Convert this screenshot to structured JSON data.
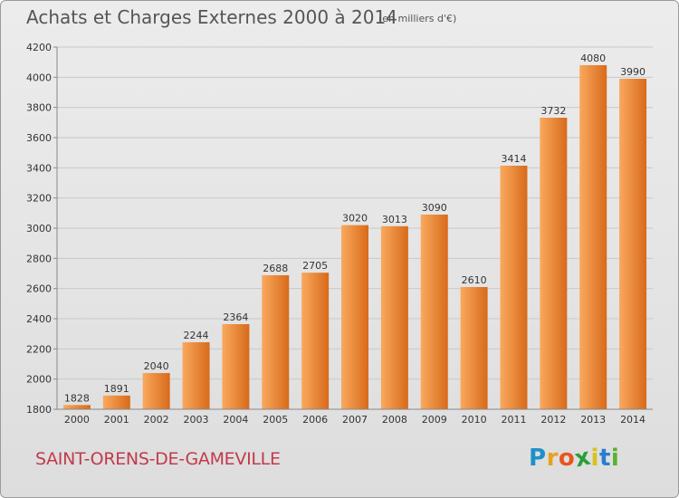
{
  "header": {
    "title": "Achats et Charges Externes 2000 à 2014",
    "subtitle": "(en milliers d'€)"
  },
  "footer": {
    "commune": "SAINT-ORENS-DE-GAMEVILLE",
    "logo": {
      "letters": [
        "P",
        "r",
        "o",
        "x",
        "i",
        "t",
        "i"
      ],
      "colors": [
        "#1e90c8",
        "#e8a21c",
        "#e8561c",
        "#2a9e3a",
        "#d8c21c",
        "#2a7ed0",
        "#58b230"
      ]
    }
  },
  "colors": {
    "bar_light": "#f9a95e",
    "bar_dark": "#d86a1a",
    "grid": "#c8c8c8",
    "text": "#333333"
  },
  "chart_data": {
    "type": "bar",
    "title": "Achats et Charges Externes 2000 à 2014",
    "subtitle": "(en milliers d'€)",
    "categories": [
      "2000",
      "2001",
      "2002",
      "2003",
      "2004",
      "2005",
      "2006",
      "2007",
      "2008",
      "2009",
      "2010",
      "2011",
      "2012",
      "2013",
      "2014"
    ],
    "values": [
      1828,
      1891,
      2040,
      2244,
      2364,
      2688,
      2705,
      3020,
      3013,
      3090,
      2610,
      3414,
      3732,
      4080,
      3990
    ],
    "ylim": [
      1800,
      4200
    ],
    "yticks": [
      1800,
      2000,
      2200,
      2400,
      2600,
      2800,
      3000,
      3200,
      3400,
      3600,
      3800,
      4000,
      4200
    ],
    "grid": true,
    "data_labels": true
  }
}
